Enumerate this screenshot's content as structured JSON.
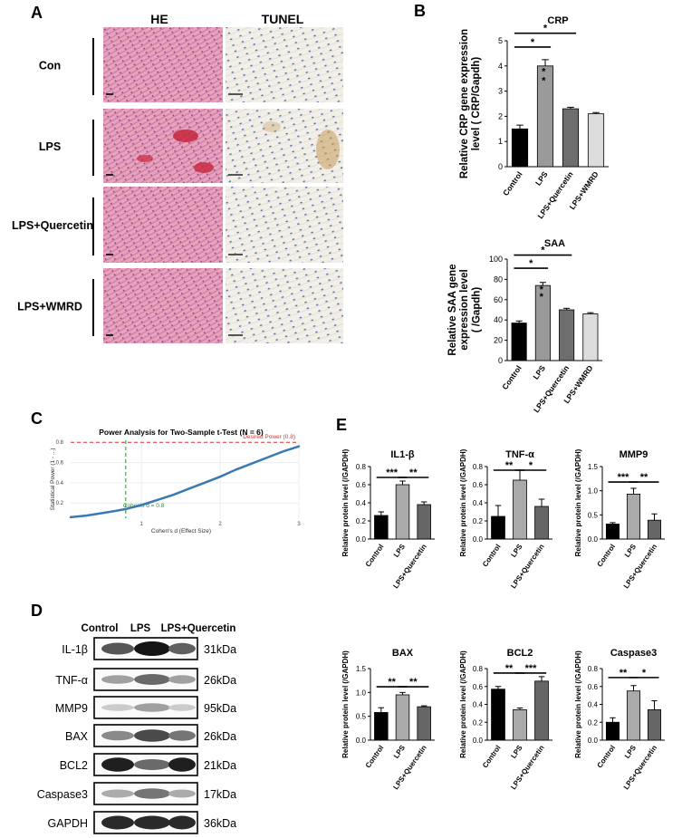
{
  "panels": {
    "A": {
      "letter": "A",
      "col_headers": [
        "HE",
        "TUNEL"
      ],
      "row_labels": [
        "Con",
        "LPS",
        "LPS+Quercetin",
        "LPS+WMRD"
      ]
    },
    "B": {
      "letter": "B"
    },
    "C": {
      "letter": "C"
    },
    "D": {
      "letter": "D",
      "lanes": [
        "Control",
        "LPS",
        "LPS+Quercetin"
      ],
      "rows": [
        {
          "protein": "IL-1β",
          "kda": "31kDa",
          "intensity": [
            0.7,
            1.0,
            0.65
          ]
        },
        {
          "protein": "TNF-α",
          "kda": "26kDa",
          "intensity": [
            0.35,
            0.6,
            0.35
          ]
        },
        {
          "protein": "MMP9",
          "kda": "95kDa",
          "intensity": [
            0.15,
            0.35,
            0.15
          ]
        },
        {
          "protein": "BAX",
          "kda": "26kDa",
          "intensity": [
            0.45,
            0.75,
            0.55
          ]
        },
        {
          "protein": "BCL2",
          "kda": "21kDa",
          "intensity": [
            0.95,
            0.6,
            0.95
          ]
        },
        {
          "protein": "Caspase3",
          "kda": "17kDa",
          "intensity": [
            0.3,
            0.55,
            0.3
          ]
        },
        {
          "protein": "GAPDH",
          "kda": "36kDa",
          "intensity": [
            0.9,
            0.9,
            0.9
          ]
        }
      ]
    },
    "E": {
      "letter": "E"
    }
  },
  "chart_data": [
    {
      "id": "crp",
      "type": "bar",
      "title": "CRP",
      "ylabel": "Relative CRP gene expression level ( CRP/Gapdh)",
      "categories": [
        "Control",
        "LPS",
        "LPS+Quercetin",
        "LPS+WMRD"
      ],
      "values": [
        1.5,
        4.0,
        2.3,
        2.1
      ],
      "errors": [
        0.15,
        0.25,
        0.06,
        0.05
      ],
      "colors": [
        "#000000",
        "#9a9a9a",
        "#6e6e6e",
        "#dcdcdc"
      ],
      "ylim": [
        0,
        5
      ],
      "yticks": [
        0,
        1,
        2,
        3,
        4,
        5
      ],
      "sig": [
        {
          "from": 0,
          "to": 2,
          "y": 5.3,
          "label": "*"
        },
        {
          "from": 0,
          "to": 1,
          "y": 4.75,
          "label": "*"
        }
      ],
      "bar_stars": [
        {
          "bar": 1,
          "label": "*"
        },
        {
          "bar": 1,
          "label": "*"
        }
      ]
    },
    {
      "id": "saa",
      "type": "bar",
      "title": "SAA",
      "ylabel": "Relative SAA gene expression level ( /Gapdh)",
      "categories": [
        "Control",
        "LPS",
        "LPS+Quercetin",
        "LPS+WMRD"
      ],
      "values": [
        37,
        74,
        50,
        46
      ],
      "errors": [
        2,
        3,
        1.5,
        1.2
      ],
      "colors": [
        "#000000",
        "#9a9a9a",
        "#6e6e6e",
        "#dcdcdc"
      ],
      "ylim": [
        0,
        100
      ],
      "yticks": [
        0,
        20,
        40,
        60,
        80,
        100
      ],
      "sig": [
        {
          "from": 0,
          "to": 2,
          "y": 104,
          "label": "*"
        },
        {
          "from": 0,
          "to": 1,
          "y": 91,
          "label": "*"
        }
      ],
      "bar_stars": [
        {
          "bar": 1,
          "label": "*"
        },
        {
          "bar": 1,
          "label": "*"
        }
      ]
    },
    {
      "id": "power",
      "type": "line",
      "title": "Power Analysis for Two-Sample t-Test (N = 6)",
      "xlabel": "Cohen's d (Effect Size)",
      "ylabel": "Statistical Power (1 - ...)",
      "x": [
        0.1,
        0.3,
        0.5,
        0.7,
        0.8,
        1.0,
        1.2,
        1.4,
        1.6,
        1.8,
        2.0,
        2.2,
        2.4,
        2.6,
        2.8,
        3.0
      ],
      "y": [
        0.06,
        0.076,
        0.1,
        0.126,
        0.14,
        0.18,
        0.23,
        0.28,
        0.34,
        0.4,
        0.46,
        0.53,
        0.59,
        0.65,
        0.71,
        0.76
      ],
      "xlim": [
        0.1,
        3.0
      ],
      "ylim": [
        0.05,
        0.82
      ],
      "xticks": [
        1,
        2,
        3
      ],
      "yticks": [
        0.2,
        0.4,
        0.6,
        0.8
      ],
      "hline": {
        "y": 0.8,
        "label": "Desired Power (0.8)"
      },
      "vline": {
        "x": 0.8,
        "label": "Cohen's d = 0.8"
      },
      "line_color": "#3a7ab4"
    },
    {
      "id": "il1b",
      "type": "bar",
      "title": "IL1-β",
      "ylabel": "Relative protein level (/GAPDH)",
      "categories": [
        "Control",
        "LPS",
        "LPS+Quercetin"
      ],
      "values": [
        0.26,
        0.6,
        0.38
      ],
      "errors": [
        0.04,
        0.04,
        0.03
      ],
      "colors": [
        "#000000",
        "#aaaaaa",
        "#666666"
      ],
      "ylim": [
        0,
        0.8
      ],
      "yticks": [
        0.0,
        0.2,
        0.4,
        0.6,
        0.8
      ],
      "sig": [
        {
          "from": 0,
          "to": 1,
          "y": 0.68,
          "label": "***"
        },
        {
          "from": 1,
          "to": 2,
          "y": 0.68,
          "label": "**"
        }
      ]
    },
    {
      "id": "tnfa",
      "type": "bar",
      "title": "TNF-α",
      "ylabel": "Relative protein level (/GAPDH)",
      "categories": [
        "Control",
        "LPS",
        "LPS+Quercetin"
      ],
      "values": [
        0.25,
        0.65,
        0.36
      ],
      "errors": [
        0.12,
        0.11,
        0.08
      ],
      "colors": [
        "#000000",
        "#aaaaaa",
        "#666666"
      ],
      "ylim": [
        0,
        0.8
      ],
      "yticks": [
        0.0,
        0.2,
        0.4,
        0.6,
        0.8
      ],
      "sig": [
        {
          "from": 0,
          "to": 1,
          "y": 0.76,
          "label": "**"
        },
        {
          "from": 1,
          "to": 2,
          "y": 0.76,
          "label": "*"
        }
      ]
    },
    {
      "id": "mmp9",
      "type": "bar",
      "title": "MMP9",
      "ylabel": "Relative protein level (/GAPDH)",
      "categories": [
        "Control",
        "LPS",
        "LPS+Quercetin"
      ],
      "values": [
        0.31,
        0.93,
        0.39
      ],
      "errors": [
        0.03,
        0.12,
        0.13
      ],
      "colors": [
        "#000000",
        "#aaaaaa",
        "#666666"
      ],
      "ylim": [
        0,
        1.5
      ],
      "yticks": [
        0.0,
        0.5,
        1.0,
        1.5
      ],
      "sig": [
        {
          "from": 0,
          "to": 1,
          "y": 1.18,
          "label": "***"
        },
        {
          "from": 1,
          "to": 2,
          "y": 1.18,
          "label": "**"
        }
      ]
    },
    {
      "id": "bax",
      "type": "bar",
      "title": "BAX",
      "ylabel": "Relative protein level (/GAPDH)",
      "categories": [
        "Control",
        "LPS",
        "LPS+Quercetin"
      ],
      "values": [
        0.58,
        0.95,
        0.7
      ],
      "errors": [
        0.1,
        0.05,
        0.02
      ],
      "colors": [
        "#000000",
        "#aaaaaa",
        "#666666"
      ],
      "ylim": [
        0,
        1.5
      ],
      "yticks": [
        0.0,
        0.5,
        1.0,
        1.5
      ],
      "sig": [
        {
          "from": 0,
          "to": 1,
          "y": 1.12,
          "label": "**"
        },
        {
          "from": 1,
          "to": 2,
          "y": 1.12,
          "label": "**"
        }
      ]
    },
    {
      "id": "bcl2",
      "type": "bar",
      "title": "BCL2",
      "ylabel": "Relative protein level (/GAPDH)",
      "categories": [
        "Control",
        "LPS",
        "LPS+Quercetin"
      ],
      "values": [
        0.57,
        0.34,
        0.66
      ],
      "errors": [
        0.03,
        0.02,
        0.05
      ],
      "colors": [
        "#000000",
        "#aaaaaa",
        "#666666"
      ],
      "ylim": [
        0,
        0.8
      ],
      "yticks": [
        0.0,
        0.2,
        0.4,
        0.6,
        0.8
      ],
      "sig": [
        {
          "from": 0,
          "to": 1,
          "y": 0.75,
          "label": "**"
        },
        {
          "from": 1,
          "to": 2,
          "y": 0.75,
          "label": "***"
        }
      ]
    },
    {
      "id": "casp3",
      "type": "bar",
      "title": "Caspase3",
      "ylabel": "Relative protein level (/GAPDH)",
      "categories": [
        "Control",
        "LPS",
        "LPS+Quercetin"
      ],
      "values": [
        0.2,
        0.55,
        0.34
      ],
      "errors": [
        0.05,
        0.06,
        0.1
      ],
      "colors": [
        "#000000",
        "#aaaaaa",
        "#666666"
      ],
      "ylim": [
        0,
        0.8
      ],
      "yticks": [
        0.0,
        0.2,
        0.4,
        0.6,
        0.8
      ],
      "sig": [
        {
          "from": 0,
          "to": 1,
          "y": 0.7,
          "label": "**"
        },
        {
          "from": 1,
          "to": 2,
          "y": 0.7,
          "label": "*"
        }
      ]
    }
  ]
}
